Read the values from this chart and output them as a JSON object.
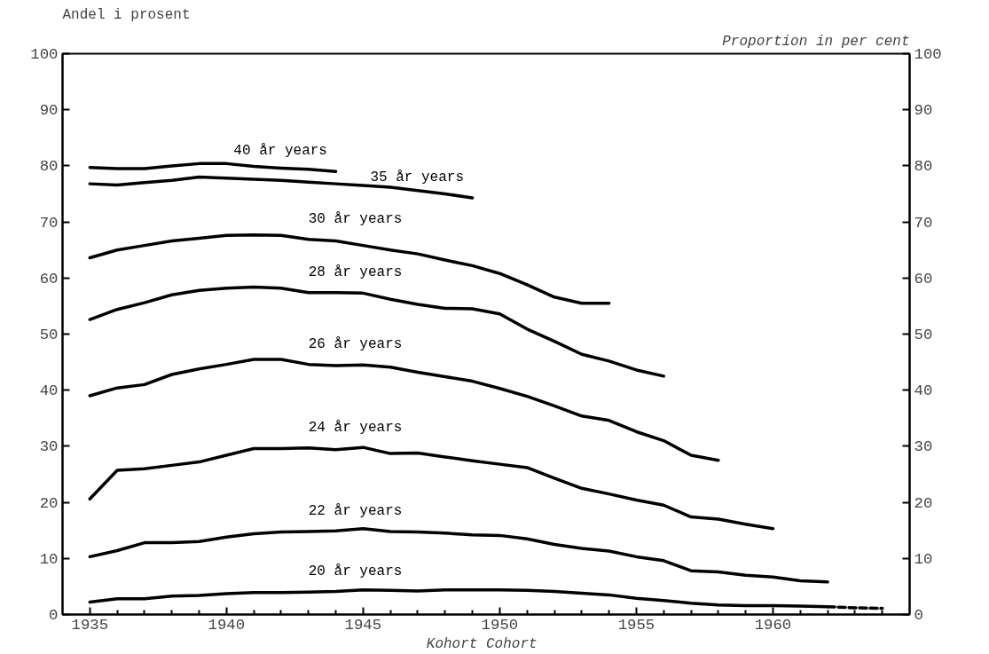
{
  "chart_data": {
    "type": "line",
    "ylabel": "Andel i prosent",
    "y2label": "Proportion in per cent",
    "xlabel": "Kohort  Cohort",
    "xlim": [
      1934,
      1965
    ],
    "ylim": [
      0,
      100
    ],
    "y2lim": [
      0,
      100
    ],
    "xticks": [
      1935,
      {
        "value": 1936,
        "label": null
      },
      {
        "value": 1937,
        "label": null
      },
      {
        "value": 1938,
        "label": null
      },
      {
        "value": 1939,
        "label": null
      },
      1940,
      {
        "value": 1941,
        "label": null
      },
      {
        "value": 1942,
        "label": null
      },
      {
        "value": 1943,
        "label": null
      },
      {
        "value": 1944,
        "label": null
      },
      1945,
      {
        "value": 1946,
        "label": null
      },
      {
        "value": 1947,
        "label": null
      },
      {
        "value": 1948,
        "label": null
      },
      {
        "value": 1949,
        "label": null
      },
      1950,
      {
        "value": 1951,
        "label": null
      },
      {
        "value": 1952,
        "label": null
      },
      {
        "value": 1953,
        "label": null
      },
      {
        "value": 1954,
        "label": null
      },
      1955,
      {
        "value": 1956,
        "label": null
      },
      {
        "value": 1957,
        "label": null
      },
      {
        "value": 1958,
        "label": null
      },
      {
        "value": 1959,
        "label": null
      },
      1960,
      {
        "value": 1961,
        "label": null
      },
      {
        "value": 1962,
        "label": null
      },
      {
        "value": 1963,
        "label": null
      },
      {
        "value": 1964,
        "label": null
      }
    ],
    "yticks": [
      0,
      10,
      20,
      30,
      40,
      50,
      60,
      70,
      80,
      90,
      100
    ],
    "y2ticks": [
      0,
      10,
      20,
      30,
      40,
      50,
      60,
      70,
      80,
      90,
      100
    ],
    "grid": false,
    "legend": false,
    "marker": "none",
    "line_style": "solid",
    "series": [
      {
        "name": "40 år  years",
        "color": "#000000",
        "x": [
          1935,
          1936,
          1937,
          1938,
          1939,
          1940,
          1941,
          1942,
          1943,
          1944
        ],
        "values": [
          79.7,
          79.5,
          79.5,
          80.0,
          80.4,
          80.4,
          79.9,
          79.6,
          79.4,
          79.0
        ]
      },
      {
        "name": "35 år  years",
        "color": "#000000",
        "x": [
          1935,
          1936,
          1937,
          1938,
          1939,
          1940,
          1941,
          1942,
          1943,
          1944,
          1945,
          1946,
          1947,
          1948,
          1949
        ],
        "values": [
          76.8,
          76.6,
          77.0,
          77.4,
          78.0,
          77.8,
          77.6,
          77.4,
          77.1,
          76.8,
          76.5,
          76.2,
          75.6,
          75.0,
          74.3
        ]
      },
      {
        "name": "30 år  years",
        "color": "#000000",
        "x": [
          1935,
          1936,
          1937,
          1938,
          1939,
          1940,
          1941,
          1942,
          1943,
          1944,
          1945,
          1946,
          1947,
          1948,
          1949,
          1950,
          1951,
          1952,
          1953,
          1954
        ],
        "values": [
          63.6,
          65.0,
          65.8,
          66.6,
          67.1,
          67.6,
          67.7,
          67.6,
          66.9,
          66.6,
          65.8,
          65.0,
          64.3,
          63.2,
          62.2,
          60.8,
          58.8,
          56.6,
          55.5,
          55.5
        ]
      },
      {
        "name": "28 år  years",
        "color": "#000000",
        "x": [
          1935,
          1936,
          1937,
          1938,
          1939,
          1940,
          1941,
          1942,
          1943,
          1944,
          1945,
          1946,
          1947,
          1948,
          1949,
          1950,
          1951,
          1952,
          1953,
          1954,
          1955,
          1956
        ],
        "values": [
          52.6,
          54.4,
          55.6,
          57.0,
          57.8,
          58.2,
          58.4,
          58.2,
          57.4,
          57.4,
          57.3,
          56.2,
          55.3,
          54.6,
          54.5,
          53.6,
          50.9,
          48.7,
          46.4,
          45.2,
          43.6,
          42.5
        ]
      },
      {
        "name": "26 år  years",
        "color": "#000000",
        "x": [
          1935,
          1936,
          1937,
          1938,
          1939,
          1940,
          1941,
          1942,
          1943,
          1944,
          1945,
          1946,
          1947,
          1948,
          1949,
          1950,
          1951,
          1952,
          1953,
          1954,
          1955,
          1956,
          1957,
          1958
        ],
        "values": [
          39.0,
          40.4,
          41.0,
          42.8,
          43.8,
          44.6,
          45.5,
          45.5,
          44.6,
          44.4,
          44.5,
          44.1,
          43.2,
          42.4,
          41.6,
          40.3,
          38.9,
          37.2,
          35.4,
          34.6,
          32.6,
          31.0,
          28.4,
          27.5
        ]
      },
      {
        "name": "24 år  years",
        "color": "#000000",
        "x": [
          1935,
          1936,
          1937,
          1938,
          1939,
          1940,
          1941,
          1942,
          1943,
          1944,
          1945,
          1946,
          1947,
          1948,
          1949,
          1950,
          1951,
          1952,
          1953,
          1954,
          1955,
          1956,
          1957,
          1958,
          1959,
          1960
        ],
        "values": [
          20.6,
          25.7,
          26.0,
          26.6,
          27.2,
          28.4,
          29.6,
          29.6,
          29.7,
          29.4,
          29.8,
          28.7,
          28.8,
          28.1,
          27.4,
          26.8,
          26.2,
          24.3,
          22.5,
          21.5,
          20.4,
          19.5,
          17.4,
          17.0,
          16.1,
          15.3
        ]
      },
      {
        "name": "22 år  years",
        "color": "#000000",
        "x": [
          1935,
          1936,
          1937,
          1938,
          1939,
          1940,
          1941,
          1942,
          1943,
          1944,
          1945,
          1946,
          1947,
          1948,
          1949,
          1950,
          1951,
          1952,
          1953,
          1954,
          1955,
          1956,
          1957,
          1958,
          1959,
          1960,
          1961,
          1962
        ],
        "values": [
          10.3,
          11.4,
          12.8,
          12.8,
          13.0,
          13.8,
          14.4,
          14.7,
          14.8,
          14.9,
          15.3,
          14.8,
          14.7,
          14.5,
          14.2,
          14.1,
          13.5,
          12.5,
          11.8,
          11.3,
          10.3,
          9.6,
          7.8,
          7.6,
          7.0,
          6.7,
          6.0,
          5.8
        ]
      },
      {
        "name": "20 år  years",
        "color": "#000000",
        "x": [
          1935,
          1936,
          1937,
          1938,
          1939,
          1940,
          1941,
          1942,
          1943,
          1944,
          1945,
          1946,
          1947,
          1948,
          1949,
          1950,
          1951,
          1952,
          1953,
          1954,
          1955,
          1956,
          1957,
          1958,
          1959,
          1960,
          1961,
          1962
        ],
        "values": [
          2.2,
          2.8,
          2.8,
          3.3,
          3.4,
          3.7,
          3.9,
          3.9,
          4.0,
          4.1,
          4.4,
          4.3,
          4.2,
          4.4,
          4.4,
          4.4,
          4.3,
          4.1,
          3.8,
          3.5,
          2.9,
          2.5,
          2.0,
          1.7,
          1.6,
          1.6,
          1.5,
          1.4
        ]
      },
      {
        "color": "#000000",
        "line_style": "dashed",
        "x": [
          1962,
          1963,
          1964
        ],
        "values": [
          1.4,
          1.2,
          1.1
        ]
      }
    ]
  }
}
